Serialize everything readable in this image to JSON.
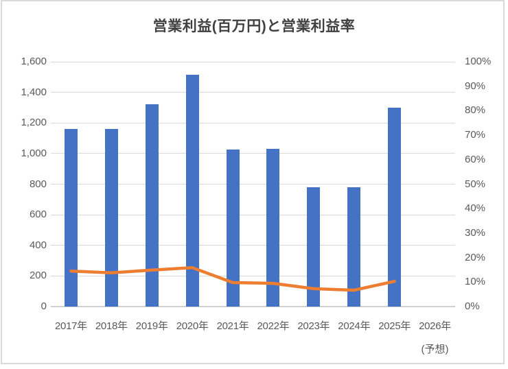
{
  "chart_data": {
    "type": "combo-bar-line",
    "title": "営業利益(百万円)と営業利益率",
    "categories": [
      "2017年",
      "2018年",
      "2019年",
      "2020年",
      "2021年",
      "2022年",
      "2023年",
      "2024年",
      "2025年",
      "2026年"
    ],
    "forecast_note": "(予想)",
    "forecast_category_index": 9,
    "series": [
      {
        "name": "営業利益(百万円)",
        "type": "bar",
        "axis": "left",
        "color": "#4472C4",
        "values": [
          1160,
          1160,
          1320,
          1515,
          1025,
          1030,
          780,
          780,
          1300,
          null
        ]
      },
      {
        "name": "営業利益率",
        "type": "line",
        "axis": "right",
        "color": "#ED7D31",
        "values": [
          14.5,
          13.8,
          14.9,
          15.9,
          9.8,
          9.5,
          7.3,
          6.7,
          10.3,
          null
        ]
      }
    ],
    "left_axis": {
      "min": 0,
      "max": 1600,
      "step": 200,
      "tick_labels": [
        "1,600",
        "1,400",
        "1,200",
        "1,000",
        "800",
        "600",
        "400",
        "200",
        "0"
      ]
    },
    "right_axis": {
      "min": 0,
      "max": 100,
      "step": 10,
      "tick_labels": [
        "100%",
        "90%",
        "80%",
        "70%",
        "60%",
        "50%",
        "40%",
        "30%",
        "20%",
        "10%",
        "0%"
      ]
    },
    "legend": "none",
    "grid": "horizontal",
    "colors": {
      "bar": "#4472C4",
      "line": "#ED7D31",
      "gridline": "#D9D9D9",
      "axis_text": "#595959",
      "title_text": "#404040",
      "frame_border": "#D9D9D9",
      "background": "#FFFFFF"
    }
  }
}
